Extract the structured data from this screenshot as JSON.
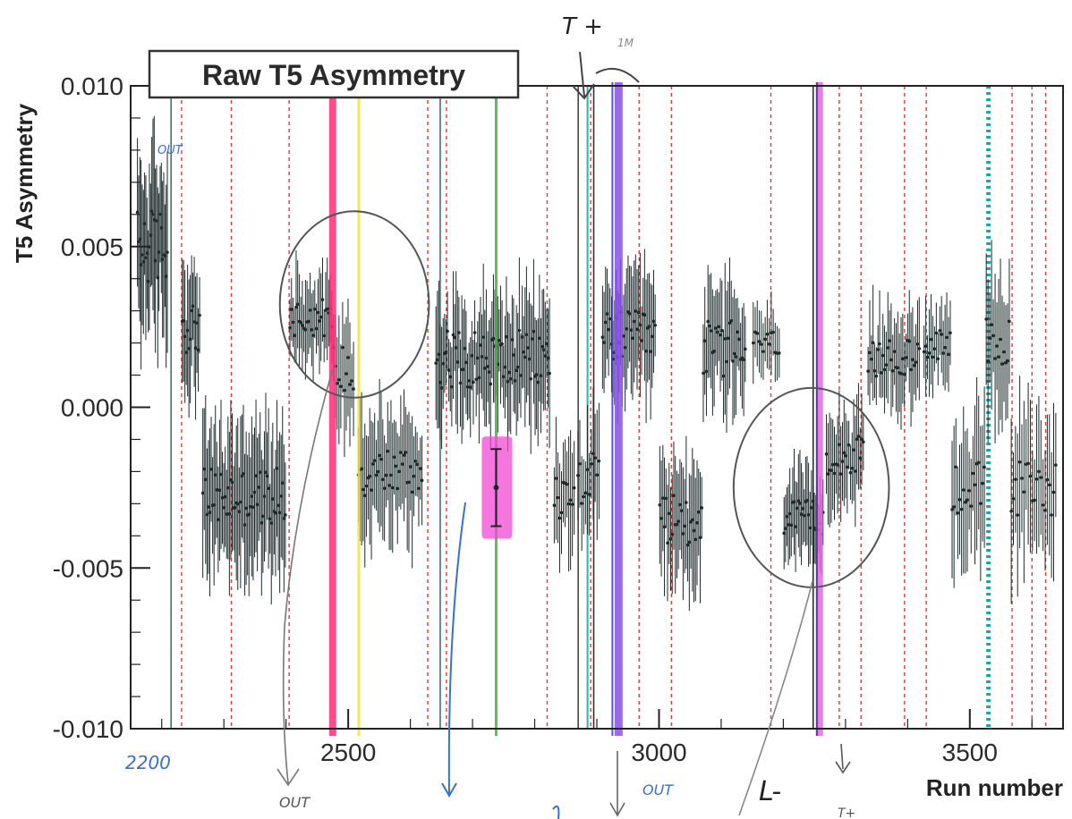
{
  "chart_data": {
    "type": "scatter",
    "title": "Raw T5 Asymmetry",
    "xlabel": "Run number",
    "ylabel": "T5 Asymmetry",
    "xlim": [
      2150,
      3650
    ],
    "ylim": [
      -0.01,
      0.01
    ],
    "x_ticks": [
      2500,
      3000,
      3500
    ],
    "y_ticks": [
      0.01,
      0.005,
      0.0,
      -0.005,
      -0.01
    ],
    "grid": false,
    "legend": "none",
    "colors": {
      "points": "#1c2a2a",
      "axis": "#222222",
      "dashed_markers": "#e23a3a",
      "pen": "#555555",
      "blue_pen": "#3a6fd0"
    },
    "segments": [
      {
        "x_start": 2160,
        "x_end": 2210,
        "mean": 0.005,
        "spread": 0.0012,
        "err": 0.0022,
        "count": 26
      },
      {
        "x_start": 2232,
        "x_end": 2262,
        "mean": 0.0025,
        "spread": 0.0008,
        "err": 0.0015,
        "count": 14
      },
      {
        "x_start": 2265,
        "x_end": 2400,
        "mean": -0.0028,
        "spread": 0.0009,
        "err": 0.0018,
        "count": 60
      },
      {
        "x_start": 2405,
        "x_end": 2475,
        "mean": 0.0028,
        "spread": 0.0006,
        "err": 0.0012,
        "count": 28
      },
      {
        "x_start": 2475,
        "x_end": 2510,
        "mean": 0.0012,
        "spread": 0.0008,
        "err": 0.0014,
        "count": 12
      },
      {
        "x_start": 2515,
        "x_end": 2620,
        "mean": -0.002,
        "spread": 0.0008,
        "err": 0.0016,
        "count": 40
      },
      {
        "x_start": 2640,
        "x_end": 2825,
        "mean": 0.0015,
        "spread": 0.0009,
        "err": 0.0016,
        "count": 80
      },
      {
        "x_start": 2830,
        "x_end": 2865,
        "mean": -0.0028,
        "spread": 0.0008,
        "err": 0.0015,
        "count": 12
      },
      {
        "x_start": 2868,
        "x_end": 2905,
        "mean": -0.0022,
        "spread": 0.0008,
        "err": 0.0014,
        "count": 12
      },
      {
        "x_start": 2908,
        "x_end": 2995,
        "mean": 0.0022,
        "spread": 0.0008,
        "err": 0.0015,
        "count": 36
      },
      {
        "x_start": 3000,
        "x_end": 3070,
        "mean": -0.0035,
        "spread": 0.0008,
        "err": 0.0015,
        "count": 28
      },
      {
        "x_start": 3070,
        "x_end": 3140,
        "mean": 0.0018,
        "spread": 0.0009,
        "err": 0.0016,
        "count": 28
      },
      {
        "x_start": 3150,
        "x_end": 3195,
        "mean": 0.002,
        "spread": 0.0004,
        "err": 0.0009,
        "count": 14
      },
      {
        "x_start": 3200,
        "x_end": 3265,
        "mean": -0.0035,
        "spread": 0.0006,
        "err": 0.0012,
        "count": 28
      },
      {
        "x_start": 3268,
        "x_end": 3330,
        "mean": -0.0015,
        "spread": 0.0006,
        "err": 0.0012,
        "count": 24
      },
      {
        "x_start": 3335,
        "x_end": 3420,
        "mean": 0.0015,
        "spread": 0.0006,
        "err": 0.0012,
        "count": 32
      },
      {
        "x_start": 3425,
        "x_end": 3470,
        "mean": 0.002,
        "spread": 0.0005,
        "err": 0.0011,
        "count": 16
      },
      {
        "x_start": 3470,
        "x_end": 3525,
        "mean": -0.0025,
        "spread": 0.0009,
        "err": 0.0018,
        "count": 18
      },
      {
        "x_start": 3525,
        "x_end": 3565,
        "mean": 0.0018,
        "spread": 0.001,
        "err": 0.0018,
        "count": 14
      },
      {
        "x_start": 3565,
        "x_end": 3640,
        "mean": -0.0025,
        "spread": 0.0009,
        "err": 0.002,
        "count": 22
      }
    ],
    "dashed_vertical_lines": [
      2232,
      2312,
      2405,
      2628,
      2658,
      2820,
      2890,
      2968,
      3020,
      3180,
      3290,
      3325,
      3395,
      3430,
      3568,
      3600,
      3622
    ],
    "solid_vertical_lines": [
      {
        "x": 2215,
        "color": "#3a6a5a",
        "width": 1.5
      },
      {
        "x": 2648,
        "color": "#3a6a5a",
        "width": 1.5
      },
      {
        "x": 2870,
        "color": "#3a3a3a",
        "width": 1.5
      },
      {
        "x": 2895,
        "color": "#2a2a2a",
        "width": 1.5
      },
      {
        "x": 3248,
        "color": "#222222",
        "width": 1.5
      },
      {
        "x": 2885,
        "color": "#2bb3b3",
        "width": 2
      }
    ],
    "highlighted_vertical_lines": [
      {
        "x": 2475,
        "color": "#ff2d7a",
        "width": 8
      },
      {
        "x": 2517,
        "color": "#f2e33a",
        "width": 3
      },
      {
        "x": 2738,
        "color": "#41b33a",
        "width": 3
      },
      {
        "x": 2935,
        "color": "#8a4ef0",
        "width": 9
      },
      {
        "x": 2925,
        "color": "#3a3ad0",
        "width": 2
      },
      {
        "x": 3258,
        "color": "#e06ae8",
        "width": 8
      },
      {
        "x": 3254,
        "color": "#3a3a7a",
        "width": 2
      }
    ],
    "dotted_vertical_lines": [
      {
        "x": 3530,
        "color": "#1aa6a6",
        "width": 5
      }
    ],
    "highlight_box": {
      "x": 2738,
      "y_center": -0.0025,
      "y_err": 0.0012,
      "color": "#f04ad6"
    },
    "circles": [
      {
        "cx": 2510,
        "cy": 0.0032,
        "rx_data": 120,
        "ry_data": 0.0058
      },
      {
        "cx": 3245,
        "cy": -0.0025,
        "rx_data": 125,
        "ry_data": 0.0062
      }
    ],
    "handwritten": {
      "top": "T +",
      "top_small": "1M",
      "out_top_left": "OUT",
      "run_2200": "2200",
      "out_bottom_left": "OUT",
      "out_bottom_mid": "OUT",
      "l_mark": "L-",
      "bottom_right": "T+"
    }
  }
}
